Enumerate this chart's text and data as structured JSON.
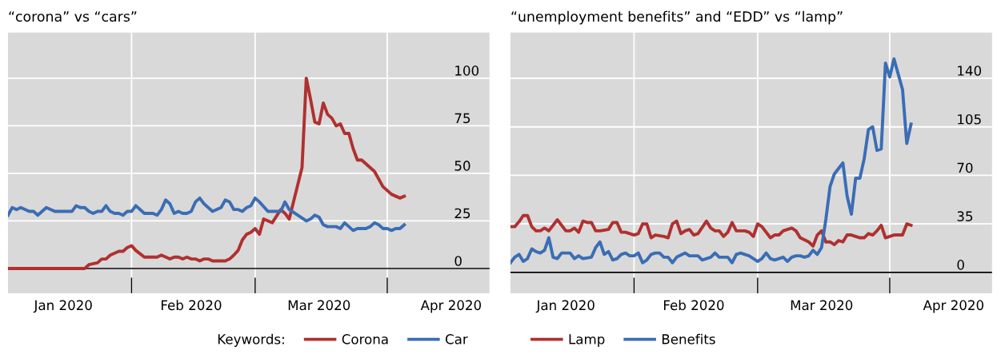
{
  "chart_data": [
    {
      "type": "line",
      "title": "“corona” vs “cars”",
      "legend_title": "Keywords:",
      "legend": "bottom right",
      "grid": true,
      "xlim": [
        "2020-01-03",
        "2020-04-25"
      ],
      "xticks": [
        {
          "value": "2020-02-01",
          "label": null
        },
        {
          "value": "2020-03-01",
          "label": null
        },
        {
          "value": "2020-04-01",
          "label": null
        },
        {
          "value": "2020-01-16",
          "label": "Jan 2020"
        },
        {
          "value": "2020-02-15",
          "label": "Feb 2020"
        },
        {
          "value": "2020-03-16",
          "label": "Mar 2020"
        },
        {
          "value": "2020-04-16",
          "label": "Apr 2020"
        }
      ],
      "ylim": [
        -13,
        124
      ],
      "yticks": [
        0,
        25,
        50,
        75,
        100
      ],
      "ref_lines": [
        {
          "axis": "y",
          "value": 0,
          "label": null,
          "color": "#000000"
        }
      ],
      "series": [
        {
          "name": "Corona",
          "color": "#b03030",
          "x": [
            "2020-01-03",
            "2020-01-21",
            "2020-01-22",
            "2020-01-24",
            "2020-01-25",
            "2020-01-26",
            "2020-01-27",
            "2020-01-29",
            "2020-01-30",
            "2020-01-31",
            "2020-02-01",
            "2020-02-02",
            "2020-02-04",
            "2020-02-07",
            "2020-02-08",
            "2020-02-10",
            "2020-02-11",
            "2020-02-12",
            "2020-02-13",
            "2020-02-14",
            "2020-02-15",
            "2020-02-16",
            "2020-02-17",
            "2020-02-18",
            "2020-02-19",
            "2020-02-20",
            "2020-02-23",
            "2020-02-24",
            "2020-02-25",
            "2020-02-26",
            "2020-02-27",
            "2020-02-28",
            "2020-02-29",
            "2020-03-01",
            "2020-03-02",
            "2020-03-03",
            "2020-03-05",
            "2020-03-07",
            "2020-03-08",
            "2020-03-09",
            "2020-03-12",
            "2020-03-13",
            "2020-03-14",
            "2020-03-15",
            "2020-03-16",
            "2020-03-17",
            "2020-03-18",
            "2020-03-19",
            "2020-03-20",
            "2020-03-21",
            "2020-03-22",
            "2020-03-23",
            "2020-03-24",
            "2020-03-25",
            "2020-03-26",
            "2020-03-29",
            "2020-03-31",
            "2020-04-02",
            "2020-04-04",
            "2020-04-05"
          ],
          "values": [
            0,
            0,
            2,
            3,
            5,
            5,
            7,
            9,
            9,
            11,
            12,
            9.5,
            6,
            6,
            7,
            5,
            6,
            6,
            5,
            6,
            5,
            5,
            4,
            5,
            5,
            4,
            4,
            5,
            7,
            9.5,
            15,
            18,
            19,
            21,
            18,
            26,
            24,
            31,
            29,
            26,
            53,
            100,
            89,
            77,
            76,
            87,
            81,
            79,
            75,
            76,
            71,
            71,
            63,
            57,
            57,
            51,
            43,
            39,
            37,
            38
          ]
        },
        {
          "name": "Car",
          "color": "#3a6db5",
          "x": [
            "2020-01-03",
            "2020-01-04",
            "2020-01-05",
            "2020-01-06",
            "2020-01-08",
            "2020-01-09",
            "2020-01-10",
            "2020-01-11",
            "2020-01-12",
            "2020-01-14",
            "2020-01-18",
            "2020-01-19",
            "2020-01-20",
            "2020-01-21",
            "2020-01-22",
            "2020-01-23",
            "2020-01-24",
            "2020-01-25",
            "2020-01-26",
            "2020-01-27",
            "2020-01-28",
            "2020-01-29",
            "2020-01-30",
            "2020-01-31",
            "2020-02-01",
            "2020-02-02",
            "2020-02-04",
            "2020-02-06",
            "2020-02-07",
            "2020-02-08",
            "2020-02-09",
            "2020-02-10",
            "2020-02-11",
            "2020-02-12",
            "2020-02-13",
            "2020-02-14",
            "2020-02-15",
            "2020-02-16",
            "2020-02-17",
            "2020-02-18",
            "2020-02-20",
            "2020-02-22",
            "2020-02-23",
            "2020-02-24",
            "2020-02-25",
            "2020-02-26",
            "2020-02-27",
            "2020-02-28",
            "2020-02-29",
            "2020-03-01",
            "2020-03-02",
            "2020-03-04",
            "2020-03-07",
            "2020-03-08",
            "2020-03-09",
            "2020-03-13",
            "2020-03-14",
            "2020-03-15",
            "2020-03-16",
            "2020-03-17",
            "2020-03-18",
            "2020-03-20",
            "2020-03-21",
            "2020-03-22",
            "2020-03-24",
            "2020-03-25",
            "2020-03-27",
            "2020-03-28",
            "2020-03-29",
            "2020-03-30",
            "2020-03-31",
            "2020-04-01",
            "2020-04-02",
            "2020-04-03",
            "2020-04-04",
            "2020-04-05"
          ],
          "values": [
            28,
            32,
            31,
            32,
            30,
            30,
            28,
            30,
            32,
            30,
            30,
            33,
            32,
            32,
            30,
            29,
            30,
            30,
            33,
            30,
            29,
            29,
            28,
            30,
            30,
            33,
            29,
            29,
            28,
            31,
            36,
            34,
            29,
            30,
            29,
            29,
            30,
            35,
            37,
            34,
            30,
            32,
            36,
            35,
            31,
            31,
            30,
            32,
            33,
            37,
            35,
            30,
            30,
            35,
            31,
            25,
            26,
            28,
            27,
            23,
            22,
            22,
            21,
            24,
            20,
            21,
            21,
            22,
            24,
            23,
            21,
            21,
            20,
            21,
            21,
            23
          ]
        }
      ]
    },
    {
      "type": "line",
      "title": "“unemployment benefits” and “EDD” vs “lamp”",
      "legend": "bottom left",
      "grid": true,
      "xlim": [
        "2020-01-03",
        "2020-04-25"
      ],
      "xticks": [
        {
          "value": "2020-02-01",
          "label": null
        },
        {
          "value": "2020-03-01",
          "label": null
        },
        {
          "value": "2020-04-01",
          "label": null
        },
        {
          "value": "2020-01-16",
          "label": "Jan 2020"
        },
        {
          "value": "2020-02-15",
          "label": "Feb 2020"
        },
        {
          "value": "2020-03-16",
          "label": "Mar 2020"
        },
        {
          "value": "2020-04-16",
          "label": "Apr 2020"
        }
      ],
      "ylim": [
        -15,
        173
      ],
      "yticks": [
        0,
        35,
        70,
        105,
        140
      ],
      "ref_lines": [
        {
          "axis": "y",
          "value": 0,
          "label": null,
          "color": "#000000"
        }
      ],
      "series": [
        {
          "name": "Lamp",
          "color": "#b03030",
          "x": [
            "2020-01-03",
            "2020-01-04",
            "2020-01-05",
            "2020-01-06",
            "2020-01-07",
            "2020-01-08",
            "2020-01-09",
            "2020-01-10",
            "2020-01-11",
            "2020-01-12",
            "2020-01-14",
            "2020-01-16",
            "2020-01-17",
            "2020-01-18",
            "2020-01-19",
            "2020-01-20",
            "2020-01-21",
            "2020-01-22",
            "2020-01-23",
            "2020-01-24",
            "2020-01-26",
            "2020-01-27",
            "2020-01-28",
            "2020-01-29",
            "2020-01-30",
            "2020-02-01",
            "2020-02-02",
            "2020-02-03",
            "2020-02-04",
            "2020-02-05",
            "2020-02-06",
            "2020-02-08",
            "2020-02-09",
            "2020-02-10",
            "2020-02-11",
            "2020-02-12",
            "2020-02-13",
            "2020-02-14",
            "2020-02-15",
            "2020-02-16",
            "2020-02-18",
            "2020-02-19",
            "2020-02-20",
            "2020-02-21",
            "2020-02-22",
            "2020-02-23",
            "2020-02-24",
            "2020-02-25",
            "2020-02-27",
            "2020-02-28",
            "2020-02-29",
            "2020-03-01",
            "2020-03-02",
            "2020-03-04",
            "2020-03-05",
            "2020-03-06",
            "2020-03-07",
            "2020-03-09",
            "2020-03-10",
            "2020-03-11",
            "2020-03-13",
            "2020-03-14",
            "2020-03-15",
            "2020-03-16",
            "2020-03-17",
            "2020-03-18",
            "2020-03-19",
            "2020-03-20",
            "2020-03-21",
            "2020-03-22",
            "2020-03-23",
            "2020-03-24",
            "2020-03-25",
            "2020-03-26",
            "2020-03-27",
            "2020-03-28",
            "2020-03-29",
            "2020-03-30",
            "2020-03-31",
            "2020-04-02",
            "2020-04-04",
            "2020-04-05",
            "2020-04-06"
          ],
          "values": [
            33,
            33,
            36.5,
            41,
            41,
            33,
            30,
            30,
            32,
            30,
            38,
            30,
            30,
            32,
            29,
            37,
            36,
            36,
            30,
            30,
            31,
            36,
            36,
            29,
            29,
            27,
            28,
            35,
            35,
            25,
            27,
            26,
            25,
            35,
            37,
            28,
            30,
            31,
            27,
            28,
            37,
            32,
            30,
            30,
            26,
            29,
            36,
            30,
            30,
            29,
            26,
            35,
            33,
            25,
            27,
            27,
            30,
            32,
            30,
            25,
            22,
            19,
            27,
            30,
            22,
            22,
            20,
            23,
            22,
            27,
            27,
            26,
            25,
            25,
            28,
            27,
            30,
            34,
            25,
            27,
            27,
            35,
            34
          ]
        },
        {
          "name": "Benefits",
          "color": "#3a6db5",
          "x": [
            "2020-01-03",
            "2020-01-04",
            "2020-01-05",
            "2020-01-06",
            "2020-01-07",
            "2020-01-08",
            "2020-01-09",
            "2020-01-10",
            "2020-01-11",
            "2020-01-12",
            "2020-01-13",
            "2020-01-14",
            "2020-01-15",
            "2020-01-17",
            "2020-01-18",
            "2020-01-19",
            "2020-01-20",
            "2020-01-22",
            "2020-01-23",
            "2020-01-24",
            "2020-01-25",
            "2020-01-26",
            "2020-01-27",
            "2020-01-28",
            "2020-01-29",
            "2020-01-30",
            "2020-01-31",
            "2020-02-01",
            "2020-02-02",
            "2020-02-03",
            "2020-02-04",
            "2020-02-05",
            "2020-02-06",
            "2020-02-07",
            "2020-02-08",
            "2020-02-09",
            "2020-02-10",
            "2020-02-11",
            "2020-02-13",
            "2020-02-14",
            "2020-02-16",
            "2020-02-17",
            "2020-02-18",
            "2020-02-19",
            "2020-02-20",
            "2020-02-21",
            "2020-02-23",
            "2020-02-24",
            "2020-02-25",
            "2020-02-26",
            "2020-02-28",
            "2020-02-29",
            "2020-03-01",
            "2020-03-02",
            "2020-03-03",
            "2020-03-04",
            "2020-03-05",
            "2020-03-07",
            "2020-03-08",
            "2020-03-09",
            "2020-03-10",
            "2020-03-11",
            "2020-03-12",
            "2020-03-13",
            "2020-03-14",
            "2020-03-15",
            "2020-03-16",
            "2020-03-17",
            "2020-03-18",
            "2020-03-19",
            "2020-03-20",
            "2020-03-21",
            "2020-03-22",
            "2020-03-23",
            "2020-03-24",
            "2020-03-25",
            "2020-03-26",
            "2020-03-27",
            "2020-03-28",
            "2020-03-29",
            "2020-03-30",
            "2020-03-31",
            "2020-04-01",
            "2020-04-02",
            "2020-04-04",
            "2020-04-05",
            "2020-04-06"
          ],
          "values": [
            7,
            11,
            13,
            8,
            10,
            17,
            15,
            14,
            16,
            25,
            11,
            10,
            14,
            14,
            10,
            12,
            10,
            11,
            18,
            22,
            13,
            15,
            9,
            10,
            13,
            14,
            12,
            12,
            14,
            7,
            9,
            13,
            14,
            14,
            11,
            11,
            7,
            11,
            14,
            12,
            12,
            9,
            10,
            11,
            14,
            11,
            11,
            7,
            13,
            14,
            12,
            10,
            8,
            10,
            14,
            10,
            9,
            11,
            8,
            11,
            12,
            12,
            11,
            12,
            16,
            13,
            18,
            38,
            62,
            71,
            75,
            79,
            55,
            42,
            68,
            68,
            82,
            103,
            105,
            88,
            89,
            151,
            141,
            154,
            132,
            93,
            107
          ]
        }
      ]
    }
  ]
}
